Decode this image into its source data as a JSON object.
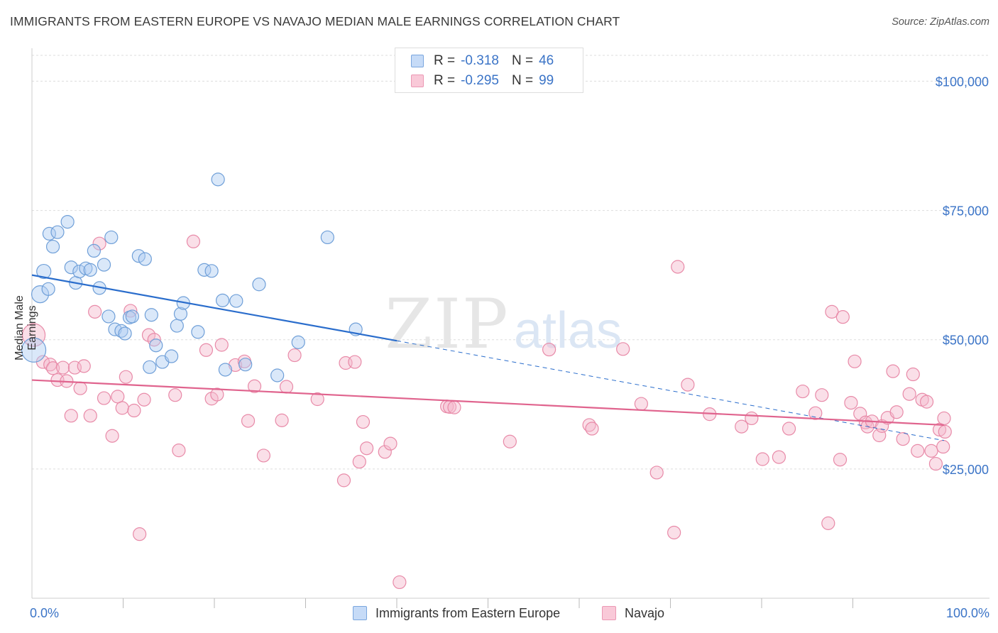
{
  "title": "IMMIGRANTS FROM EASTERN EUROPE VS NAVAJO MEDIAN MALE EARNINGS CORRELATION CHART",
  "source": "Source: ZipAtlas.com",
  "watermark": {
    "zip": "ZIP",
    "atlas": "atlas"
  },
  "legend": {
    "blue": {
      "r_label": "R = ",
      "r_value": "-0.318",
      "n_label": "N = ",
      "n_value": "46"
    },
    "pink": {
      "r_label": "R = ",
      "r_value": "-0.295",
      "n_label": "N = ",
      "n_value": "99"
    }
  },
  "bottom_legend": {
    "blue": "Immigrants from Eastern Europe",
    "pink": "Navajo"
  },
  "colors": {
    "blue_fill": "#aecbf2",
    "blue_stroke": "#6f9fd8",
    "blue_line": "#2a6dcc",
    "pink_fill": "#f5b7cb",
    "pink_stroke": "#e88aa8",
    "pink_line": "#e0648e",
    "tick_label": "#3b74c7",
    "grid": "#dddddd"
  },
  "chart_data": {
    "type": "scatter",
    "title": "IMMIGRANTS FROM EASTERN EUROPE VS NAVAJO MEDIAN MALE EARNINGS CORRELATION CHART",
    "xlabel": "",
    "ylabel": "Median Male Earnings",
    "xlim": [
      0,
      100
    ],
    "ylim": [
      0,
      105000
    ],
    "x_tick_labels": [
      "0.0%",
      "100.0%"
    ],
    "y_ticks": [
      25000,
      50000,
      75000,
      100000
    ],
    "y_tick_labels": [
      "$25,000",
      "$50,000",
      "$75,000",
      "$100,000"
    ],
    "grid": true,
    "legend_position": "top-center",
    "series": [
      {
        "name": "Immigrants from Eastern Europe",
        "r": -0.318,
        "n": 46,
        "trend": {
          "x": [
            0,
            40
          ],
          "y": [
            62500,
            49800
          ],
          "dashed_to": [
            100,
            30500
          ]
        },
        "points": [
          {
            "x": 0.2,
            "y": 48000,
            "s": 26
          },
          {
            "x": 0.9,
            "y": 58800,
            "s": 16
          },
          {
            "x": 1.3,
            "y": 63200,
            "s": 12
          },
          {
            "x": 1.8,
            "y": 59800,
            "s": 10
          },
          {
            "x": 1.9,
            "y": 70500,
            "s": 10
          },
          {
            "x": 2.3,
            "y": 68000,
            "s": 10
          },
          {
            "x": 2.8,
            "y": 70800,
            "s": 10
          },
          {
            "x": 3.9,
            "y": 72800,
            "s": 10
          },
          {
            "x": 4.3,
            "y": 64000,
            "s": 10
          },
          {
            "x": 4.8,
            "y": 61000,
            "s": 10
          },
          {
            "x": 5.2,
            "y": 63200,
            "s": 10
          },
          {
            "x": 5.9,
            "y": 63800,
            "s": 10
          },
          {
            "x": 6.4,
            "y": 63500,
            "s": 10
          },
          {
            "x": 6.8,
            "y": 67200,
            "s": 10
          },
          {
            "x": 7.4,
            "y": 60000,
            "s": 10
          },
          {
            "x": 7.9,
            "y": 64500,
            "s": 10
          },
          {
            "x": 8.4,
            "y": 54500,
            "s": 10
          },
          {
            "x": 8.7,
            "y": 69800,
            "s": 10
          },
          {
            "x": 9.1,
            "y": 52000,
            "s": 10
          },
          {
            "x": 9.8,
            "y": 51700,
            "s": 10
          },
          {
            "x": 10.2,
            "y": 51200,
            "s": 10
          },
          {
            "x": 10.7,
            "y": 54300,
            "s": 10
          },
          {
            "x": 11.0,
            "y": 54500,
            "s": 10
          },
          {
            "x": 11.7,
            "y": 66200,
            "s": 10
          },
          {
            "x": 12.4,
            "y": 65600,
            "s": 10
          },
          {
            "x": 12.9,
            "y": 44700,
            "s": 10
          },
          {
            "x": 13.1,
            "y": 54800,
            "s": 10
          },
          {
            "x": 13.6,
            "y": 48900,
            "s": 10
          },
          {
            "x": 14.3,
            "y": 45700,
            "s": 10
          },
          {
            "x": 15.3,
            "y": 46800,
            "s": 10
          },
          {
            "x": 15.9,
            "y": 52700,
            "s": 10
          },
          {
            "x": 16.3,
            "y": 55000,
            "s": 10
          },
          {
            "x": 16.6,
            "y": 57100,
            "s": 10
          },
          {
            "x": 18.2,
            "y": 51500,
            "s": 10
          },
          {
            "x": 18.9,
            "y": 63500,
            "s": 10
          },
          {
            "x": 19.7,
            "y": 63300,
            "s": 10
          },
          {
            "x": 20.4,
            "y": 81000,
            "s": 10
          },
          {
            "x": 20.9,
            "y": 57600,
            "s": 10
          },
          {
            "x": 21.2,
            "y": 44200,
            "s": 10
          },
          {
            "x": 22.4,
            "y": 57500,
            "s": 10
          },
          {
            "x": 23.4,
            "y": 45200,
            "s": 10
          },
          {
            "x": 24.9,
            "y": 60700,
            "s": 10
          },
          {
            "x": 26.9,
            "y": 43100,
            "s": 10
          },
          {
            "x": 29.2,
            "y": 49500,
            "s": 10
          },
          {
            "x": 32.4,
            "y": 69800,
            "s": 10
          },
          {
            "x": 35.5,
            "y": 52000,
            "s": 10
          }
        ]
      },
      {
        "name": "Navajo",
        "r": -0.295,
        "n": 99,
        "trend": {
          "x": [
            0,
            100
          ],
          "y": [
            42200,
            33500
          ]
        },
        "points": [
          {
            "x": 0.2,
            "y": 50900,
            "s": 24
          },
          {
            "x": 1.2,
            "y": 45700,
            "s": 10
          },
          {
            "x": 2.0,
            "y": 45200,
            "s": 10
          },
          {
            "x": 2.3,
            "y": 44500,
            "s": 10
          },
          {
            "x": 2.8,
            "y": 42200,
            "s": 10
          },
          {
            "x": 3.4,
            "y": 44600,
            "s": 10
          },
          {
            "x": 3.8,
            "y": 42000,
            "s": 10
          },
          {
            "x": 4.3,
            "y": 35300,
            "s": 10
          },
          {
            "x": 4.7,
            "y": 44600,
            "s": 10
          },
          {
            "x": 5.3,
            "y": 40600,
            "s": 10
          },
          {
            "x": 5.7,
            "y": 44900,
            "s": 10
          },
          {
            "x": 6.4,
            "y": 35300,
            "s": 10
          },
          {
            "x": 6.9,
            "y": 55400,
            "s": 10
          },
          {
            "x": 7.4,
            "y": 68600,
            "s": 10
          },
          {
            "x": 7.9,
            "y": 38700,
            "s": 10
          },
          {
            "x": 8.8,
            "y": 31400,
            "s": 10
          },
          {
            "x": 9.4,
            "y": 39000,
            "s": 10
          },
          {
            "x": 9.9,
            "y": 36800,
            "s": 10
          },
          {
            "x": 10.3,
            "y": 42800,
            "s": 10
          },
          {
            "x": 10.8,
            "y": 55600,
            "s": 10
          },
          {
            "x": 11.2,
            "y": 36300,
            "s": 10
          },
          {
            "x": 11.8,
            "y": 12400,
            "s": 10
          },
          {
            "x": 12.3,
            "y": 38400,
            "s": 10
          },
          {
            "x": 12.8,
            "y": 50900,
            "s": 10
          },
          {
            "x": 13.4,
            "y": 50000,
            "s": 10
          },
          {
            "x": 15.7,
            "y": 39300,
            "s": 10
          },
          {
            "x": 16.1,
            "y": 28600,
            "s": 10
          },
          {
            "x": 17.7,
            "y": 69000,
            "s": 10
          },
          {
            "x": 19.1,
            "y": 48000,
            "s": 10
          },
          {
            "x": 19.7,
            "y": 38600,
            "s": 10
          },
          {
            "x": 20.3,
            "y": 39400,
            "s": 10
          },
          {
            "x": 20.8,
            "y": 49000,
            "s": 10
          },
          {
            "x": 22.3,
            "y": 45100,
            "s": 10
          },
          {
            "x": 23.3,
            "y": 45800,
            "s": 10
          },
          {
            "x": 23.7,
            "y": 34300,
            "s": 10
          },
          {
            "x": 24.4,
            "y": 41000,
            "s": 10
          },
          {
            "x": 25.4,
            "y": 27600,
            "s": 10
          },
          {
            "x": 27.4,
            "y": 34400,
            "s": 10
          },
          {
            "x": 27.9,
            "y": 40900,
            "s": 10
          },
          {
            "x": 28.8,
            "y": 47000,
            "s": 10
          },
          {
            "x": 31.3,
            "y": 38500,
            "s": 10
          },
          {
            "x": 34.2,
            "y": 22800,
            "s": 10
          },
          {
            "x": 34.4,
            "y": 45500,
            "s": 10
          },
          {
            "x": 35.4,
            "y": 45700,
            "s": 10
          },
          {
            "x": 35.9,
            "y": 26400,
            "s": 10
          },
          {
            "x": 36.3,
            "y": 34100,
            "s": 10
          },
          {
            "x": 36.7,
            "y": 29000,
            "s": 10
          },
          {
            "x": 38.7,
            "y": 28300,
            "s": 10
          },
          {
            "x": 39.3,
            "y": 29900,
            "s": 10
          },
          {
            "x": 40.3,
            "y": 3100,
            "s": 10
          },
          {
            "x": 45.5,
            "y": 37100,
            "s": 10
          },
          {
            "x": 45.8,
            "y": 37000,
            "s": 10
          },
          {
            "x": 46.3,
            "y": 36900,
            "s": 10
          },
          {
            "x": 52.4,
            "y": 30300,
            "s": 10
          },
          {
            "x": 56.7,
            "y": 48100,
            "s": 10
          },
          {
            "x": 61.1,
            "y": 33500,
            "s": 10
          },
          {
            "x": 61.4,
            "y": 32800,
            "s": 10
          },
          {
            "x": 64.8,
            "y": 48200,
            "s": 10
          },
          {
            "x": 66.8,
            "y": 37600,
            "s": 10
          },
          {
            "x": 68.5,
            "y": 24300,
            "s": 10
          },
          {
            "x": 70.4,
            "y": 12700,
            "s": 10
          },
          {
            "x": 70.8,
            "y": 64100,
            "s": 10
          },
          {
            "x": 71.9,
            "y": 41300,
            "s": 10
          },
          {
            "x": 74.3,
            "y": 35600,
            "s": 10
          },
          {
            "x": 77.8,
            "y": 33200,
            "s": 10
          },
          {
            "x": 78.9,
            "y": 34800,
            "s": 10
          },
          {
            "x": 80.1,
            "y": 26900,
            "s": 10
          },
          {
            "x": 81.9,
            "y": 27300,
            "s": 10
          },
          {
            "x": 83.0,
            "y": 32800,
            "s": 10
          },
          {
            "x": 84.5,
            "y": 40000,
            "s": 10
          },
          {
            "x": 85.9,
            "y": 35800,
            "s": 10
          },
          {
            "x": 86.6,
            "y": 39300,
            "s": 10
          },
          {
            "x": 87.3,
            "y": 14500,
            "s": 10
          },
          {
            "x": 87.7,
            "y": 55400,
            "s": 10
          },
          {
            "x": 88.9,
            "y": 54400,
            "s": 10
          },
          {
            "x": 88.6,
            "y": 26800,
            "s": 10
          },
          {
            "x": 89.8,
            "y": 37800,
            "s": 10
          },
          {
            "x": 90.2,
            "y": 45800,
            "s": 10
          },
          {
            "x": 90.8,
            "y": 35700,
            "s": 10
          },
          {
            "x": 91.4,
            "y": 34000,
            "s": 10
          },
          {
            "x": 91.6,
            "y": 33200,
            "s": 10
          },
          {
            "x": 92.1,
            "y": 34200,
            "s": 10
          },
          {
            "x": 92.9,
            "y": 31500,
            "s": 10
          },
          {
            "x": 93.2,
            "y": 33300,
            "s": 10
          },
          {
            "x": 93.8,
            "y": 34900,
            "s": 10
          },
          {
            "x": 94.4,
            "y": 43900,
            "s": 10
          },
          {
            "x": 94.8,
            "y": 36000,
            "s": 10
          },
          {
            "x": 95.5,
            "y": 30800,
            "s": 10
          },
          {
            "x": 96.2,
            "y": 39500,
            "s": 10
          },
          {
            "x": 96.6,
            "y": 43300,
            "s": 10
          },
          {
            "x": 97.1,
            "y": 28500,
            "s": 10
          },
          {
            "x": 97.6,
            "y": 38400,
            "s": 10
          },
          {
            "x": 98.1,
            "y": 38000,
            "s": 10
          },
          {
            "x": 98.6,
            "y": 28500,
            "s": 10
          },
          {
            "x": 99.1,
            "y": 26000,
            "s": 10
          },
          {
            "x": 99.5,
            "y": 32600,
            "s": 10
          },
          {
            "x": 99.9,
            "y": 29300,
            "s": 10
          },
          {
            "x": 100.0,
            "y": 34800,
            "s": 10
          },
          {
            "x": 100.1,
            "y": 32200,
            "s": 10
          }
        ]
      }
    ]
  }
}
